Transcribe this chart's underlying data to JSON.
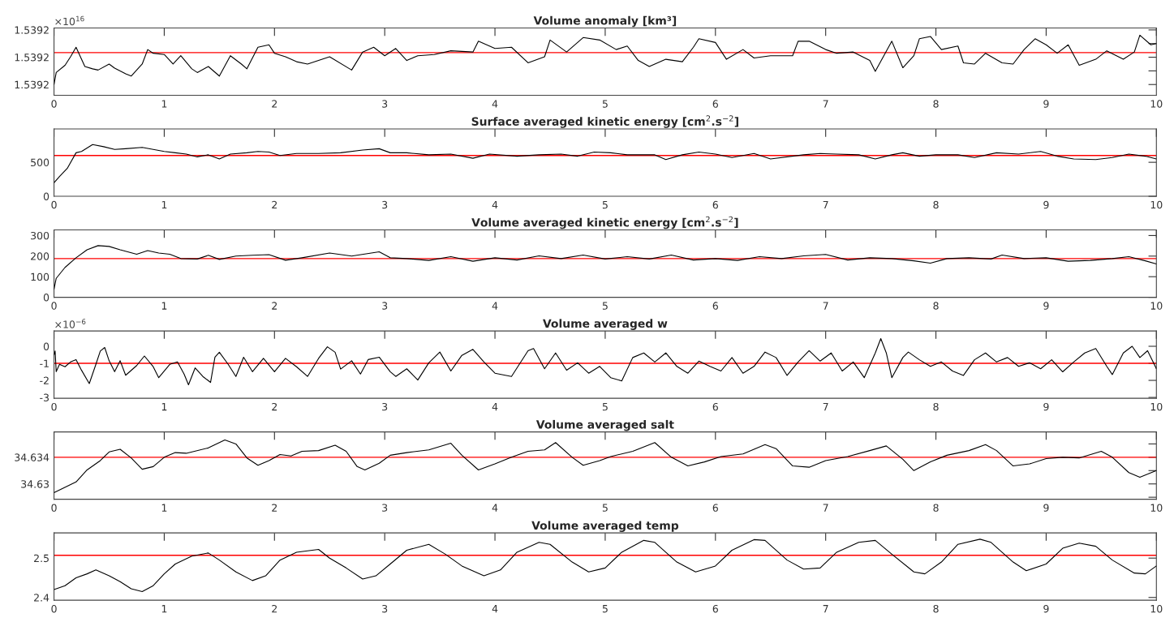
{
  "chart_data": [
    {
      "type": "line",
      "title": "Volume anomaly [km³]",
      "annotations": [
        "×10$^{16}$"
      ],
      "x": [
        0,
        0.02,
        0.1,
        0.15,
        0.2,
        0.28,
        0.35,
        0.4,
        0.5,
        0.55,
        0.65,
        0.7,
        0.75,
        0.8,
        0.85,
        0.9,
        1.0,
        1.08,
        1.15,
        1.25,
        1.3,
        1.4,
        1.5,
        1.6,
        1.7,
        1.75,
        1.85,
        1.95,
        2.0,
        2.1,
        2.2,
        2.3,
        2.4,
        2.5,
        2.7,
        2.8,
        2.9,
        3.0,
        3.1,
        3.2,
        3.3,
        3.45,
        3.6,
        3.8,
        3.85,
        4.0,
        4.15,
        4.3,
        4.45,
        4.5,
        4.65,
        4.8,
        4.95,
        5.1,
        5.2,
        5.3,
        5.4,
        5.55,
        5.7,
        5.8,
        5.85,
        6.0,
        6.1,
        6.25,
        6.35,
        6.5,
        6.7,
        6.75,
        6.85,
        7.0,
        7.1,
        7.25,
        7.4,
        7.45,
        7.6,
        7.7,
        7.8,
        7.85,
        7.95,
        8.05,
        8.2,
        8.25,
        8.35,
        8.45,
        8.6,
        8.7,
        8.8,
        8.9,
        9.0,
        9.1,
        9.2,
        9.3,
        9.45,
        9.55,
        9.7,
        9.8,
        9.85,
        9.95,
        10
      ],
      "series": [
        {
          "color": "#000000",
          "values": [
            1.5392,
            1.5392088,
            1.5392141,
            1.5392203,
            1.5392273,
            1.5392132,
            1.5392115,
            1.5392106,
            1.539215,
            1.539212,
            1.5392079,
            1.5392062,
            1.5392106,
            1.539215,
            1.5392256,
            1.5392229,
            1.539222,
            1.539215,
            1.5392211,
            1.5392115,
            1.5392088,
            1.5392132,
            1.5392062,
            1.5392211,
            1.539215,
            1.5392115,
            1.5392273,
            1.5392291,
            1.5392229,
            1.5392203,
            1.5392167,
            1.539215,
            1.5392176,
            1.5392203,
            1.5392106,
            1.5392238,
            1.5392273,
            1.5392211,
            1.5392264,
            1.5392176,
            1.5392211,
            1.539222,
            1.5392247,
            1.5392238,
            1.5392317,
            1.5392264,
            1.5392273,
            1.5392159,
            1.5392203,
            1.5392326,
            1.5392238,
            1.5392344,
            1.5392326,
            1.5392256,
            1.5392282,
            1.5392176,
            1.5392132,
            1.5392185,
            1.5392167,
            1.5392273,
            1.5392335,
            1.5392308,
            1.5392185,
            1.5392256,
            1.5392194,
            1.5392211,
            1.5392211,
            1.5392317,
            1.5392317,
            1.5392256,
            1.5392229,
            1.5392238,
            1.5392176,
            1.5392097,
            1.5392317,
            1.5392123,
            1.5392211,
            1.5392335,
            1.5392352,
            1.5392256,
            1.5392282,
            1.5392159,
            1.539215,
            1.5392229,
            1.5392159,
            1.539215,
            1.5392256,
            1.5392335,
            1.5392291,
            1.5392229,
            1.5392291,
            1.5392141,
            1.5392185,
            1.5392247,
            1.5392185,
            1.5392238,
            1.5392361,
            1.5392291,
            1.53923
          ]
        }
      ],
      "xlim": [
        0,
        10
      ],
      "xticks": [
        0,
        1,
        2,
        3,
        4,
        5,
        6,
        7,
        8,
        9,
        10
      ],
      "ylim": [
        1.5391921,
        1.5392414
      ],
      "yticks": [
        {
          "value": 1.5392,
          "label": "1.5392"
        },
        {
          "value": 1.53921,
          "label": null
        },
        {
          "value": 1.53922,
          "label": "1.5392"
        },
        {
          "value": 1.53923,
          "label": null
        },
        {
          "value": 1.53924,
          "label": "1.5392"
        }
      ],
      "ref_lines": [
        {
          "axis": "y",
          "value": 1.5392234,
          "color": "#ff0000"
        }
      ]
    },
    {
      "type": "line",
      "title": "Surface averaged kinetic energy [cm$^{2}$.s$^{−2}$]",
      "x": [
        0,
        0.05,
        0.12,
        0.2,
        0.25,
        0.3,
        0.35,
        0.45,
        0.55,
        0.65,
        0.8,
        0.9,
        1.0,
        1.1,
        1.2,
        1.3,
        1.4,
        1.5,
        1.6,
        1.75,
        1.85,
        1.95,
        2.05,
        2.2,
        2.4,
        2.6,
        2.8,
        2.95,
        3.05,
        3.2,
        3.4,
        3.6,
        3.8,
        3.95,
        4.2,
        4.4,
        4.6,
        4.75,
        4.9,
        5.05,
        5.2,
        5.45,
        5.55,
        5.7,
        5.85,
        6.0,
        6.15,
        6.35,
        6.5,
        6.8,
        6.95,
        7.1,
        7.3,
        7.45,
        7.6,
        7.7,
        7.85,
        8.0,
        8.2,
        8.35,
        8.55,
        8.75,
        8.95,
        9.1,
        9.25,
        9.45,
        9.6,
        9.75,
        9.9,
        10
      ],
      "series": [
        {
          "color": "#000000",
          "values": [
            200,
            290,
            410,
            640,
            660,
            710,
            760,
            730,
            690,
            700,
            720,
            690,
            660,
            640,
            620,
            580,
            610,
            550,
            620,
            640,
            660,
            650,
            600,
            630,
            630,
            640,
            680,
            700,
            640,
            640,
            610,
            620,
            560,
            620,
            590,
            610,
            620,
            590,
            650,
            640,
            610,
            610,
            540,
            610,
            650,
            620,
            570,
            630,
            550,
            610,
            630,
            620,
            610,
            550,
            610,
            640,
            590,
            610,
            610,
            570,
            640,
            620,
            660,
            590,
            550,
            540,
            570,
            620,
            590,
            550
          ]
        }
      ],
      "xlim": [
        0,
        10
      ],
      "xticks": [
        0,
        1,
        2,
        3,
        4,
        5,
        6,
        7,
        8,
        9,
        10
      ],
      "ylim": [
        0,
        990
      ],
      "yticks": [
        0,
        500
      ],
      "ref_lines": [
        {
          "axis": "y",
          "value": 600,
          "color": "#ff0000"
        }
      ]
    },
    {
      "type": "line",
      "title": "Volume averaged kinetic energy [cm$^{2}$.s$^{−2}$]",
      "x": [
        0,
        0.02,
        0.1,
        0.2,
        0.3,
        0.4,
        0.5,
        0.6,
        0.75,
        0.85,
        0.95,
        1.05,
        1.15,
        1.3,
        1.4,
        1.5,
        1.65,
        1.8,
        1.95,
        2.1,
        2.25,
        2.5,
        2.7,
        2.95,
        3.05,
        3.2,
        3.4,
        3.6,
        3.8,
        4.0,
        4.2,
        4.4,
        4.6,
        4.8,
        5.0,
        5.2,
        5.4,
        5.6,
        5.8,
        6.0,
        6.2,
        6.4,
        6.6,
        6.8,
        7.0,
        7.2,
        7.4,
        7.6,
        7.8,
        7.95,
        8.1,
        8.3,
        8.5,
        8.6,
        8.8,
        9.0,
        9.2,
        9.4,
        9.6,
        9.75,
        9.9,
        10
      ],
      "series": [
        {
          "color": "#000000",
          "values": [
            39,
            92,
            145,
            192,
            231,
            251,
            247,
            231,
            209,
            227,
            215,
            209,
            188,
            186,
            204,
            184,
            200,
            204,
            207,
            180,
            192,
            215,
            200,
            221,
            192,
            188,
            179,
            197,
            175,
            192,
            181,
            201,
            188,
            205,
            186,
            197,
            186,
            205,
            181,
            188,
            179,
            197,
            188,
            201,
            208,
            181,
            192,
            188,
            177,
            166,
            188,
            192,
            186,
            205,
            188,
            192,
            175,
            179,
            188,
            197,
            177,
            162
          ]
        }
      ],
      "xlim": [
        0,
        10
      ],
      "xticks": [
        0,
        1,
        2,
        3,
        4,
        5,
        6,
        7,
        8,
        9,
        10
      ],
      "ylim": [
        0,
        327
      ],
      "yticks": [
        0,
        100,
        200,
        300
      ],
      "ref_lines": [
        {
          "axis": "y",
          "value": 188,
          "color": "#ff0000"
        }
      ]
    },
    {
      "type": "line",
      "title": "Volume averaged w",
      "annotations": [
        "×10$^{−6}$"
      ],
      "x": [
        0,
        0.01,
        0.02,
        0.05,
        0.1,
        0.15,
        0.2,
        0.25,
        0.32,
        0.38,
        0.42,
        0.46,
        0.5,
        0.55,
        0.6,
        0.65,
        0.75,
        0.82,
        0.9,
        0.95,
        1.05,
        1.12,
        1.18,
        1.22,
        1.28,
        1.35,
        1.42,
        1.46,
        1.5,
        1.58,
        1.65,
        1.72,
        1.8,
        1.9,
        2.0,
        2.1,
        2.2,
        2.3,
        2.4,
        2.48,
        2.55,
        2.6,
        2.7,
        2.78,
        2.85,
        2.95,
        3.05,
        3.1,
        3.2,
        3.3,
        3.4,
        3.5,
        3.6,
        3.7,
        3.8,
        3.9,
        4.0,
        4.15,
        4.3,
        4.35,
        4.45,
        4.55,
        4.65,
        4.75,
        4.85,
        4.95,
        5.05,
        5.15,
        5.25,
        5.35,
        5.45,
        5.55,
        5.65,
        5.75,
        5.85,
        5.95,
        6.05,
        6.15,
        6.25,
        6.35,
        6.45,
        6.55,
        6.65,
        6.75,
        6.85,
        6.95,
        7.05,
        7.15,
        7.25,
        7.35,
        7.45,
        7.5,
        7.55,
        7.6,
        7.7,
        7.75,
        7.85,
        7.95,
        8.05,
        8.15,
        8.25,
        8.35,
        8.45,
        8.55,
        8.65,
        8.75,
        8.85,
        8.95,
        9.05,
        9.15,
        9.25,
        9.35,
        9.45,
        9.55,
        9.6,
        9.7,
        9.78,
        9.85,
        9.92,
        9.97,
        10
      ],
      "series": [
        {
          "color": "#000000",
          "values": [
            -0.5,
            -0.28,
            -1.49,
            -1.06,
            -1.2,
            -0.92,
            -0.78,
            -1.41,
            -2.19,
            -1.06,
            -0.28,
            -0.07,
            -0.85,
            -1.49,
            -0.85,
            -1.7,
            -1.13,
            -0.57,
            -1.2,
            -1.84,
            -1.06,
            -0.92,
            -1.63,
            -2.26,
            -1.27,
            -1.77,
            -2.12,
            -0.64,
            -0.35,
            -1.06,
            -1.77,
            -0.64,
            -1.49,
            -0.71,
            -1.49,
            -0.71,
            -1.2,
            -1.77,
            -0.71,
            -0.03,
            -0.35,
            -1.34,
            -0.85,
            -1.63,
            -0.78,
            -0.64,
            -1.49,
            -1.77,
            -1.32,
            -1.98,
            -0.97,
            -0.34,
            -1.45,
            -0.53,
            -0.18,
            -0.92,
            -1.58,
            -1.77,
            -0.26,
            -0.13,
            -1.32,
            -0.39,
            -1.4,
            -0.97,
            -1.58,
            -1.18,
            -1.84,
            -2.03,
            -0.66,
            -0.39,
            -0.92,
            -0.39,
            -1.18,
            -1.58,
            -0.87,
            -1.18,
            -1.45,
            -0.66,
            -1.58,
            -1.18,
            -0.34,
            -0.66,
            -1.71,
            -0.92,
            -0.26,
            -0.87,
            -0.39,
            -1.45,
            -0.92,
            -1.84,
            -0.39,
            0.45,
            -0.39,
            -1.84,
            -0.66,
            -0.34,
            -0.79,
            -1.18,
            -0.92,
            -1.45,
            -1.71,
            -0.79,
            -0.39,
            -0.92,
            -0.66,
            -1.18,
            -0.97,
            -1.32,
            -0.79,
            -1.5,
            -0.92,
            -0.39,
            -0.13,
            -1.18,
            -1.66,
            -0.39,
            0.0,
            -0.66,
            -0.26,
            -0.92,
            -1.32
          ]
        }
      ],
      "xlim": [
        0,
        10
      ],
      "xticks": [
        0,
        1,
        2,
        3,
        4,
        5,
        6,
        7,
        8,
        9,
        10
      ],
      "ylim": [
        -3.05,
        0.9
      ],
      "yticks": [
        -3,
        -2,
        -1,
        0
      ],
      "ref_lines": [
        {
          "axis": "y",
          "value": -1,
          "color": "#ff0000"
        }
      ]
    },
    {
      "type": "line",
      "title": "Volume averaged salt",
      "x": [
        0,
        0.2,
        0.3,
        0.42,
        0.5,
        0.6,
        0.7,
        0.8,
        0.9,
        1.0,
        1.1,
        1.2,
        1.4,
        1.55,
        1.65,
        1.75,
        1.85,
        1.95,
        2.05,
        2.15,
        2.25,
        2.4,
        2.55,
        2.65,
        2.75,
        2.82,
        2.95,
        3.05,
        3.2,
        3.4,
        3.6,
        3.7,
        3.85,
        4.0,
        4.15,
        4.3,
        4.45,
        4.55,
        4.7,
        4.8,
        4.95,
        5.05,
        5.25,
        5.45,
        5.6,
        5.75,
        5.9,
        6.05,
        6.25,
        6.45,
        6.55,
        6.7,
        6.85,
        7.0,
        7.2,
        7.4,
        7.55,
        7.7,
        7.8,
        7.95,
        8.1,
        8.3,
        8.45,
        8.55,
        8.7,
        8.85,
        9.0,
        9.15,
        9.3,
        9.5,
        9.6,
        9.75,
        9.85,
        10
      ],
      "series": [
        {
          "color": "#000000",
          "values": [
            34.6287,
            34.6303,
            34.6321,
            34.6335,
            34.6348,
            34.6352,
            34.6339,
            34.6322,
            34.6326,
            34.634,
            34.6347,
            34.6346,
            34.6354,
            34.6366,
            34.636,
            34.6339,
            34.6328,
            34.6335,
            34.6344,
            34.6342,
            34.6349,
            34.635,
            34.6358,
            34.6349,
            34.6326,
            34.6321,
            34.6331,
            34.6343,
            34.6347,
            34.6351,
            34.6361,
            34.6343,
            34.6321,
            34.633,
            34.634,
            34.6349,
            34.6351,
            34.6362,
            34.634,
            34.6328,
            34.6335,
            34.6341,
            34.6349,
            34.6362,
            34.634,
            34.6327,
            34.6333,
            34.6341,
            34.6345,
            34.6359,
            34.6353,
            34.6327,
            34.6325,
            34.6335,
            34.6341,
            34.635,
            34.6357,
            34.6337,
            34.632,
            34.6333,
            34.6343,
            34.635,
            34.6359,
            34.635,
            34.6327,
            34.633,
            34.6338,
            34.634,
            34.6339,
            34.6349,
            34.634,
            34.6317,
            34.631,
            34.632
          ]
        }
      ],
      "xlim": [
        0,
        10
      ],
      "xticks": [
        0,
        1,
        2,
        3,
        4,
        5,
        6,
        7,
        8,
        9,
        10
      ],
      "ylim": [
        34.6277,
        34.6378
      ],
      "yticks": [
        {
          "value": 34.628,
          "label": null
        },
        34.63,
        {
          "value": 34.632,
          "label": null
        },
        34.634,
        {
          "value": 34.636,
          "label": null
        }
      ],
      "ref_lines": [
        {
          "axis": "y",
          "value": 34.634,
          "color": "#ff0000"
        }
      ]
    },
    {
      "type": "line",
      "title": "Volume averaged temp",
      "x": [
        0,
        0.1,
        0.2,
        0.3,
        0.38,
        0.5,
        0.6,
        0.7,
        0.8,
        0.9,
        1.0,
        1.1,
        1.25,
        1.4,
        1.5,
        1.65,
        1.8,
        1.92,
        2.05,
        2.2,
        2.4,
        2.5,
        2.65,
        2.8,
        2.92,
        3.05,
        3.2,
        3.4,
        3.55,
        3.7,
        3.9,
        4.05,
        4.2,
        4.4,
        4.5,
        4.7,
        4.85,
        5.0,
        5.15,
        5.35,
        5.45,
        5.65,
        5.82,
        6.0,
        6.15,
        6.35,
        6.45,
        6.65,
        6.8,
        6.95,
        7.1,
        7.3,
        7.45,
        7.6,
        7.8,
        7.9,
        8.05,
        8.2,
        8.4,
        8.5,
        8.7,
        8.82,
        9.0,
        9.15,
        9.3,
        9.45,
        9.6,
        9.8,
        9.9,
        10
      ],
      "series": [
        {
          "color": "#000000",
          "values": [
            2.42,
            2.43,
            2.45,
            2.46,
            2.47,
            2.455,
            2.44,
            2.422,
            2.415,
            2.43,
            2.46,
            2.485,
            2.505,
            2.513,
            2.495,
            2.465,
            2.443,
            2.455,
            2.495,
            2.515,
            2.522,
            2.5,
            2.475,
            2.447,
            2.455,
            2.485,
            2.52,
            2.535,
            2.51,
            2.48,
            2.455,
            2.47,
            2.515,
            2.54,
            2.535,
            2.49,
            2.465,
            2.475,
            2.515,
            2.545,
            2.54,
            2.49,
            2.465,
            2.48,
            2.52,
            2.547,
            2.545,
            2.495,
            2.472,
            2.475,
            2.515,
            2.54,
            2.545,
            2.51,
            2.465,
            2.46,
            2.49,
            2.535,
            2.548,
            2.54,
            2.49,
            2.468,
            2.485,
            2.525,
            2.538,
            2.53,
            2.495,
            2.462,
            2.46,
            2.48
          ]
        }
      ],
      "xlim": [
        0,
        10
      ],
      "xticks": [
        0,
        1,
        2,
        3,
        4,
        5,
        6,
        7,
        8,
        9,
        10
      ],
      "ylim": [
        2.393,
        2.564
      ],
      "yticks": [
        2.4,
        2.5
      ],
      "ref_lines": [
        {
          "axis": "y",
          "value": 2.507,
          "color": "#ff0000"
        }
      ]
    }
  ]
}
